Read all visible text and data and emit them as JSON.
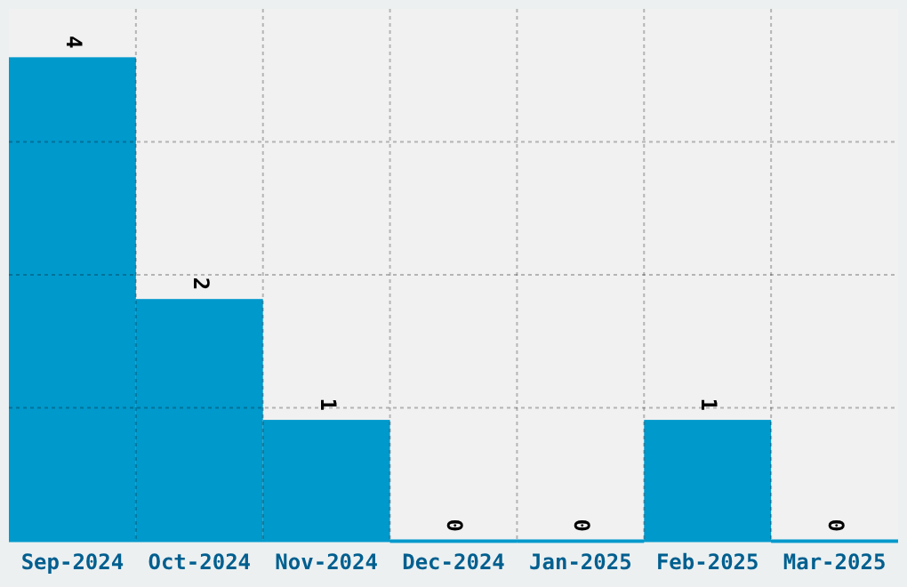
{
  "chart_data": {
    "type": "bar",
    "categories": [
      "Sep-2024",
      "Oct-2024",
      "Nov-2024",
      "Dec-2024",
      "Jan-2025",
      "Feb-2025",
      "Mar-2025"
    ],
    "values": [
      4,
      2,
      1,
      0,
      0,
      1,
      0
    ],
    "color": "#0099cc",
    "data_labels": true,
    "ylim": [
      0,
      4.4
    ],
    "yticks": [
      {
        "value": 1.1,
        "label": null
      },
      {
        "value": 2.2,
        "label": null
      },
      {
        "value": 3.3,
        "label": null
      }
    ],
    "grid": true,
    "tick_labels": "x"
  }
}
